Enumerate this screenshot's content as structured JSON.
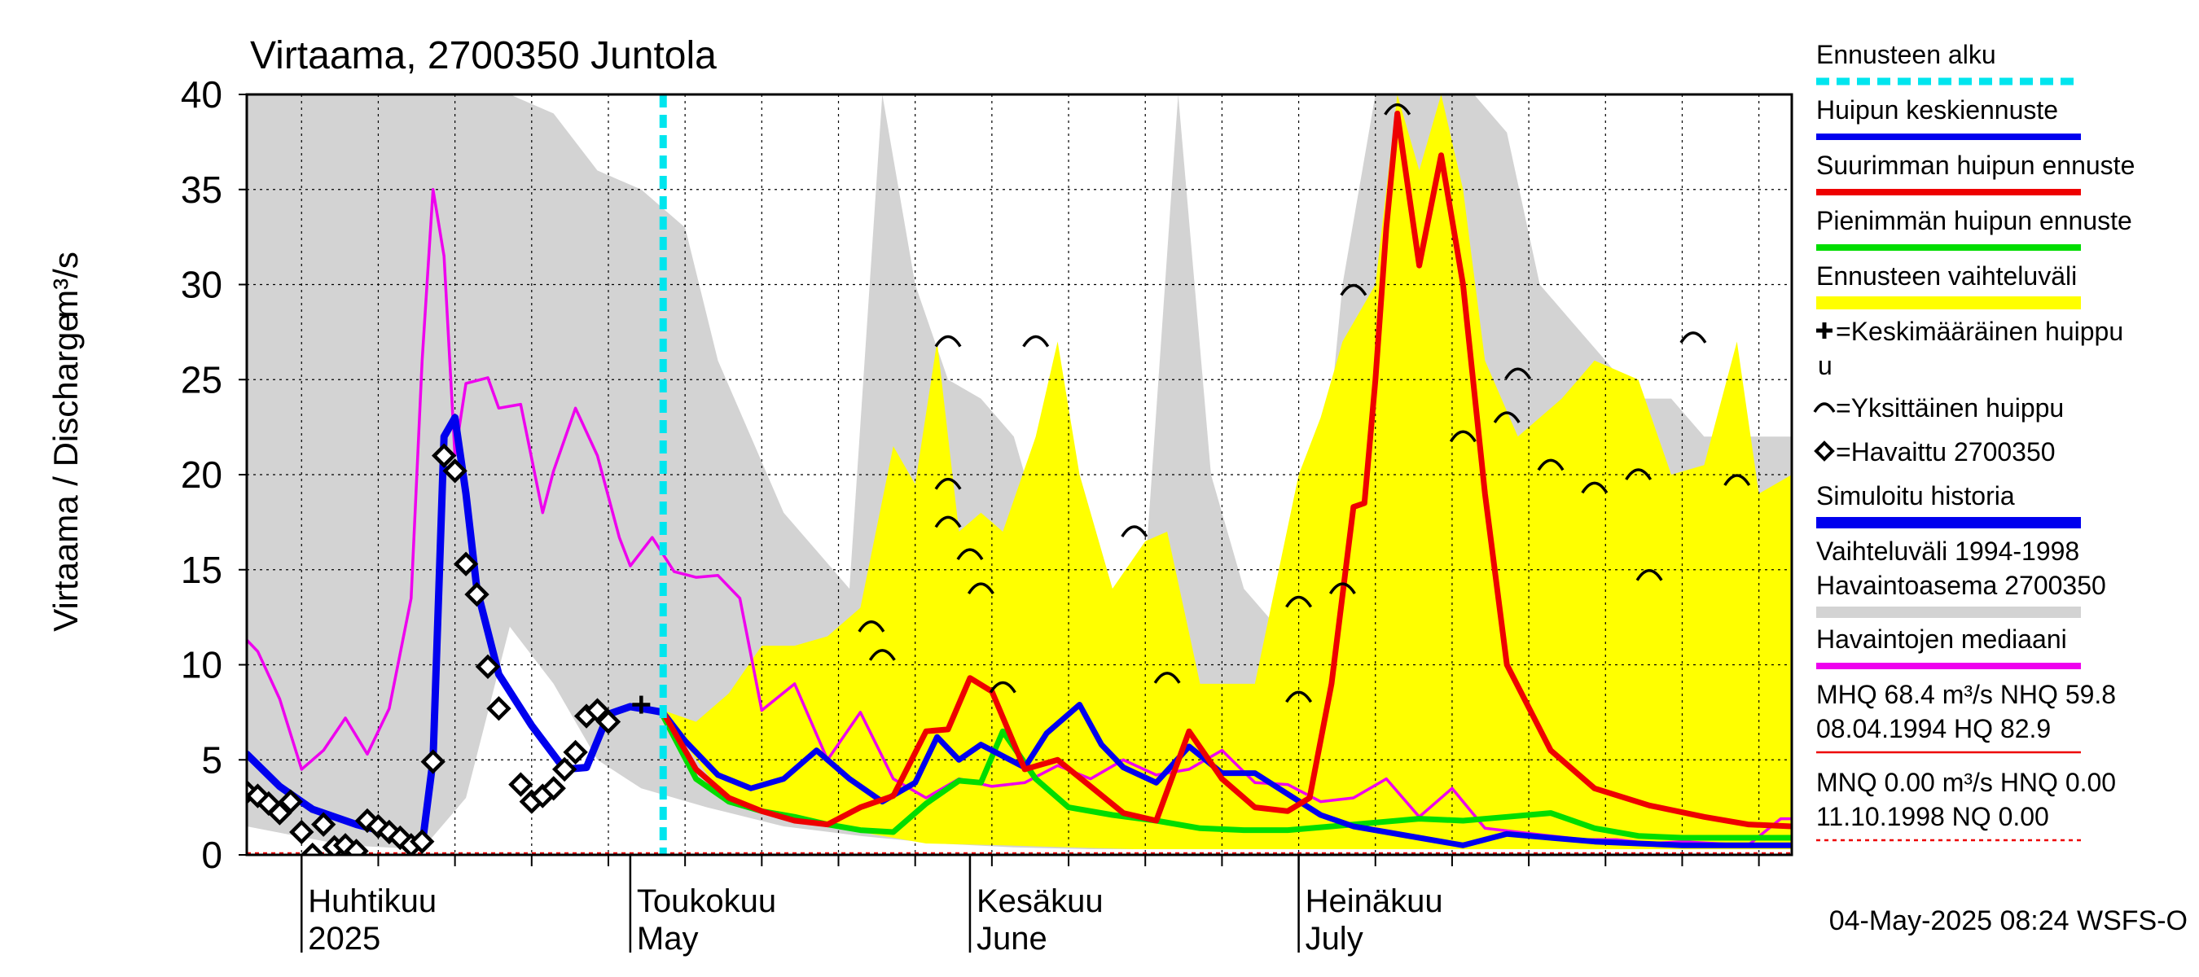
{
  "title": "Virtaama, 2700350 Juntola",
  "footer": "04-May-2025 08:24 WSFS-O",
  "chart_data": {
    "type": "line",
    "title": "Virtaama, 2700350 Juntola",
    "ylabel": "Virtaama / Discharge",
    "yunit": "m³/s",
    "ylim": [
      0,
      40
    ],
    "yticks": [
      "0",
      "5",
      "10",
      "15",
      "20",
      "25",
      "30",
      "35",
      "40"
    ],
    "xlim": [
      "2025-03-27",
      "2025-08-15"
    ],
    "forecast_start": "2025-05-04",
    "months": [
      {
        "date": "2025-04-01",
        "fi": "Huhtikuu",
        "en": "2025"
      },
      {
        "date": "2025-05-01",
        "fi": "Toukokuu",
        "en": "May"
      },
      {
        "date": "2025-06-01",
        "fi": "Kesäkuu",
        "en": "June"
      },
      {
        "date": "2025-07-01",
        "fi": "Heinäkuu",
        "en": "July"
      }
    ],
    "legend": [
      {
        "label": "Ennusteen alku",
        "color": "#00e5ee",
        "style": "dashed"
      },
      {
        "label": "Huipun keskiennuste",
        "color": "#0000ee",
        "style": "line"
      },
      {
        "label": "Suurimman huipun ennuste",
        "color": "#ee0000",
        "style": "line"
      },
      {
        "label": "Pienimmän huipun ennuste",
        "color": "#00dd00",
        "style": "line"
      },
      {
        "label": "Ennusteen vaihteluväli",
        "color": "#ffff00",
        "style": "band"
      },
      {
        "label": "=Keskimääräinen huippu",
        "label2": "u",
        "style": "plus"
      },
      {
        "label": "=Yksittäinen huippu",
        "style": "arc"
      },
      {
        "label": "=Havaittu 2700350",
        "style": "diamond"
      },
      {
        "label": "Simuloitu historia",
        "color": "#0000ee",
        "style": "thick"
      },
      {
        "label": "Vaihteluväli 1994-1998",
        "label2": " Havaintoasema 2700350",
        "color": "#d3d3d3",
        "style": "thick"
      },
      {
        "label": "Havaintojen mediaani",
        "color": "#ee00ee",
        "style": "line"
      },
      {
        "label": "MHQ 68.4 m³/s NHQ 59.8",
        "label2": "08.04.1994 HQ 82.9",
        "color": "#ee0000",
        "style": "thin"
      },
      {
        "label": "MNQ 0.00 m³/s HNQ 0.00",
        "label2": "11.10.1998 NQ 0.00",
        "color": "#ee0000",
        "style": "dotted"
      }
    ],
    "series": [
      {
        "name": "Havaittu 2700350",
        "x": [
          "2025-03-27",
          "2025-03-28",
          "2025-03-29",
          "2025-03-30",
          "2025-03-31",
          "2025-04-01",
          "2025-04-02",
          "2025-04-03",
          "2025-04-04",
          "2025-04-05",
          "2025-04-06",
          "2025-04-07",
          "2025-04-08",
          "2025-04-09",
          "2025-04-10",
          "2025-04-11",
          "2025-04-12",
          "2025-04-13",
          "2025-04-14",
          "2025-04-15",
          "2025-04-16",
          "2025-04-17",
          "2025-04-18",
          "2025-04-19",
          "2025-04-20",
          "2025-04-21",
          "2025-04-22",
          "2025-04-23",
          "2025-04-24",
          "2025-04-25",
          "2025-04-26",
          "2025-04-27",
          "2025-04-28",
          "2025-04-29",
          "2025-04-30",
          "2025-05-01",
          "2025-05-02",
          "2025-05-03"
        ],
        "y": [
          3.3,
          3.1,
          2.7,
          2.2,
          2.8,
          1.2,
          0.0,
          1.6,
          0.4,
          0.5,
          0.2,
          1.8,
          1.5,
          1.2,
          0.9,
          0.5,
          0.7,
          4.9,
          21.0,
          20.2,
          15.3,
          13.7,
          9.9,
          7.7,
          null,
          3.7,
          2.8,
          3.1,
          3.5,
          4.5,
          5.4,
          7.3,
          7.6,
          7.0,
          null,
          null,
          null,
          null
        ]
      },
      {
        "name": "Simuloitu historia",
        "x": [
          "2025-03-27",
          "2025-03-30",
          "2025-04-02",
          "2025-04-06",
          "2025-04-10",
          "2025-04-12",
          "2025-04-13",
          "2025-04-14",
          "2025-04-15",
          "2025-04-16",
          "2025-04-17",
          "2025-04-19",
          "2025-04-22",
          "2025-04-25",
          "2025-04-27",
          "2025-04-29",
          "2025-05-01",
          "2025-05-03",
          "2025-05-04"
        ],
        "y": [
          5.3,
          3.6,
          2.4,
          1.6,
          1.0,
          0.5,
          5.0,
          22.0,
          23.0,
          19.0,
          14.0,
          9.5,
          6.8,
          4.5,
          4.6,
          7.4,
          7.8,
          7.6,
          7.5
        ]
      },
      {
        "name": "Havaintojen mediaani",
        "x": [
          "2025-03-27",
          "2025-03-28",
          "2025-03-30",
          "2025-04-01",
          "2025-04-03",
          "2025-04-05",
          "2025-04-07",
          "2025-04-09",
          "2025-04-11",
          "2025-04-12",
          "2025-04-13",
          "2025-04-14",
          "2025-04-15",
          "2025-04-16",
          "2025-04-18",
          "2025-04-19",
          "2025-04-21",
          "2025-04-23",
          "2025-04-24",
          "2025-04-26",
          "2025-04-28",
          "2025-04-30",
          "2025-05-01",
          "2025-05-03",
          "2025-05-05",
          "2025-05-07",
          "2025-05-09",
          "2025-05-11",
          "2025-05-13",
          "2025-05-16",
          "2025-05-19",
          "2025-05-22",
          "2025-05-25",
          "2025-05-28",
          "2025-05-31",
          "2025-06-03",
          "2025-06-06",
          "2025-06-09",
          "2025-06-12",
          "2025-06-15",
          "2025-06-18",
          "2025-06-21",
          "2025-06-24",
          "2025-06-27",
          "2025-06-30",
          "2025-07-03",
          "2025-07-06",
          "2025-07-09",
          "2025-07-12",
          "2025-07-15",
          "2025-07-18",
          "2025-07-21",
          "2025-07-24",
          "2025-07-27",
          "2025-07-30",
          "2025-08-02",
          "2025-08-05",
          "2025-08-08",
          "2025-08-11",
          "2025-08-14",
          "2025-08-15"
        ],
        "y": [
          11.3,
          10.7,
          8.2,
          4.5,
          5.5,
          7.2,
          5.3,
          7.7,
          13.5,
          26.0,
          35.0,
          31.5,
          21.0,
          24.8,
          25.1,
          23.5,
          23.7,
          18.0,
          20.2,
          23.5,
          21.0,
          16.7,
          15.2,
          16.7,
          14.9,
          14.6,
          14.7,
          13.5,
          7.6,
          9.0,
          5.0,
          7.5,
          4.0,
          3.0,
          4.0,
          3.6,
          3.8,
          4.7,
          4.0,
          5.0,
          4.2,
          4.5,
          5.5,
          3.8,
          3.7,
          2.8,
          3.0,
          4.0,
          2.0,
          3.5,
          1.4,
          1.2,
          1.0,
          0.8,
          0.8,
          0.6,
          0.7,
          0.6,
          0.5,
          1.9,
          1.9
        ]
      },
      {
        "name": "Huipun keskiennuste",
        "x": [
          "2025-05-04",
          "2025-05-06",
          "2025-05-09",
          "2025-05-12",
          "2025-05-15",
          "2025-05-18",
          "2025-05-21",
          "2025-05-24",
          "2025-05-27",
          "2025-05-29",
          "2025-05-31",
          "2025-06-02",
          "2025-06-04",
          "2025-06-06",
          "2025-06-08",
          "2025-06-11",
          "2025-06-13",
          "2025-06-15",
          "2025-06-18",
          "2025-06-21",
          "2025-06-24",
          "2025-06-27",
          "2025-06-30",
          "2025-07-03",
          "2025-07-06",
          "2025-07-09",
          "2025-07-12",
          "2025-07-16",
          "2025-07-20",
          "2025-07-24",
          "2025-07-28",
          "2025-08-01",
          "2025-08-05",
          "2025-08-10",
          "2025-08-15"
        ],
        "y": [
          7.5,
          6.0,
          4.2,
          3.5,
          4.0,
          5.5,
          4.0,
          2.8,
          3.8,
          6.2,
          5.0,
          5.8,
          5.2,
          4.6,
          6.4,
          7.9,
          5.8,
          4.6,
          3.8,
          5.7,
          4.3,
          4.3,
          3.2,
          2.1,
          1.5,
          1.2,
          0.9,
          0.5,
          1.1,
          0.9,
          0.7,
          0.6,
          0.5,
          0.5,
          0.5
        ]
      },
      {
        "name": "Suurimman huipun ennuste",
        "x": [
          "2025-05-04",
          "2025-05-07",
          "2025-05-10",
          "2025-05-13",
          "2025-05-16",
          "2025-05-19",
          "2025-05-22",
          "2025-05-25",
          "2025-05-28",
          "2025-05-30",
          "2025-06-01",
          "2025-06-03",
          "2025-06-06",
          "2025-06-09",
          "2025-06-12",
          "2025-06-15",
          "2025-06-18",
          "2025-06-21",
          "2025-06-24",
          "2025-06-27",
          "2025-06-30",
          "2025-07-02",
          "2025-07-04",
          "2025-07-06",
          "2025-07-07",
          "2025-07-08",
          "2025-07-09",
          "2025-07-10",
          "2025-07-12",
          "2025-07-14",
          "2025-07-16",
          "2025-07-18",
          "2025-07-20",
          "2025-07-24",
          "2025-07-28",
          "2025-08-02",
          "2025-08-07",
          "2025-08-11",
          "2025-08-15"
        ],
        "y": [
          7.5,
          4.5,
          3.0,
          2.3,
          1.8,
          1.6,
          2.5,
          3.1,
          6.5,
          6.6,
          9.3,
          8.6,
          4.5,
          5.0,
          3.6,
          2.2,
          1.8,
          6.5,
          4.0,
          2.5,
          2.3,
          3.0,
          9.0,
          18.3,
          18.5,
          25.0,
          33.0,
          39.0,
          31.0,
          36.8,
          30.0,
          19.0,
          10.0,
          5.5,
          3.5,
          2.6,
          2.0,
          1.6,
          1.5
        ]
      },
      {
        "name": "Pienimmän huipun ennuste",
        "x": [
          "2025-05-04",
          "2025-05-07",
          "2025-05-10",
          "2025-05-13",
          "2025-05-16",
          "2025-05-19",
          "2025-05-22",
          "2025-05-25",
          "2025-05-28",
          "2025-05-31",
          "2025-06-02",
          "2025-06-04",
          "2025-06-07",
          "2025-06-10",
          "2025-06-14",
          "2025-06-18",
          "2025-06-22",
          "2025-06-26",
          "2025-06-30",
          "2025-07-04",
          "2025-07-08",
          "2025-07-12",
          "2025-07-16",
          "2025-07-20",
          "2025-07-24",
          "2025-07-28",
          "2025-08-01",
          "2025-08-05",
          "2025-08-10",
          "2025-08-15"
        ],
        "y": [
          7.3,
          4.0,
          2.8,
          2.3,
          2.0,
          1.6,
          1.3,
          1.2,
          2.7,
          3.9,
          3.8,
          6.5,
          4.0,
          2.5,
          2.1,
          1.8,
          1.4,
          1.3,
          1.3,
          1.5,
          1.7,
          1.9,
          1.8,
          2.0,
          2.2,
          1.4,
          1.0,
          0.9,
          0.9,
          0.9
        ]
      },
      {
        "name": "Ennusteen vaihteluväli (ylä)",
        "x": [
          "2025-05-04",
          "2025-05-07",
          "2025-05-10",
          "2025-05-13",
          "2025-05-16",
          "2025-05-19",
          "2025-05-22",
          "2025-05-25",
          "2025-05-27",
          "2025-05-29",
          "2025-05-31",
          "2025-06-02",
          "2025-06-04",
          "2025-06-07",
          "2025-06-09",
          "2025-06-11",
          "2025-06-14",
          "2025-06-17",
          "2025-06-19",
          "2025-06-22",
          "2025-06-24",
          "2025-06-27",
          "2025-07-01",
          "2025-07-03",
          "2025-07-05",
          "2025-07-08",
          "2025-07-10",
          "2025-07-12",
          "2025-07-14",
          "2025-07-16",
          "2025-07-18",
          "2025-07-21",
          "2025-07-25",
          "2025-07-28",
          "2025-08-01",
          "2025-08-04",
          "2025-08-07",
          "2025-08-10",
          "2025-08-12",
          "2025-08-15"
        ],
        "y": [
          7.6,
          7.0,
          8.5,
          11.0,
          11.0,
          11.5,
          13.0,
          21.5,
          19.5,
          27.0,
          17.0,
          18.0,
          17.0,
          22.0,
          27.0,
          20.0,
          14.0,
          16.5,
          17.0,
          9.0,
          9.0,
          9.0,
          20.0,
          23.0,
          27.0,
          30.0,
          40.0,
          36.0,
          40.0,
          35.0,
          26.0,
          22.0,
          24.0,
          26.0,
          25.0,
          20.0,
          20.5,
          27.0,
          19.0,
          20.0
        ]
      },
      {
        "name": "Ennusteen vaihteluväli (ala)",
        "x": [
          "2025-05-04",
          "2025-05-10",
          "2025-05-16",
          "2025-05-22",
          "2025-05-28",
          "2025-06-04",
          "2025-06-10",
          "2025-06-16",
          "2025-06-22",
          "2025-06-28",
          "2025-07-04",
          "2025-07-10",
          "2025-07-16",
          "2025-07-22",
          "2025-07-28",
          "2025-08-03",
          "2025-08-09",
          "2025-08-15"
        ],
        "y": [
          7.4,
          2.7,
          1.9,
          1.2,
          0.6,
          0.5,
          0.4,
          0.3,
          0.3,
          0.3,
          0.3,
          0.3,
          0.3,
          0.3,
          0.3,
          0.3,
          0.3,
          0.3
        ]
      },
      {
        "name": "Vaihteluväli 1994-1998 (ylä)",
        "x": [
          "2025-03-27",
          "2025-04-05",
          "2025-04-12",
          "2025-04-16",
          "2025-04-20",
          "2025-04-24",
          "2025-04-28",
          "2025-05-02",
          "2025-05-06",
          "2025-05-09",
          "2025-05-12",
          "2025-05-15",
          "2025-05-18",
          "2025-05-21",
          "2025-05-24",
          "2025-05-27",
          "2025-05-30",
          "2025-06-02",
          "2025-06-05",
          "2025-06-08",
          "2025-06-11",
          "2025-06-14",
          "2025-06-17",
          "2025-06-20",
          "2025-06-23",
          "2025-06-26",
          "2025-06-29",
          "2025-07-02",
          "2025-07-05",
          "2025-07-08",
          "2025-07-11",
          "2025-07-14",
          "2025-07-17",
          "2025-07-20",
          "2025-07-23",
          "2025-07-26",
          "2025-07-29",
          "2025-08-01",
          "2025-08-04",
          "2025-08-07",
          "2025-08-10",
          "2025-08-15"
        ],
        "y": [
          40.0,
          40.0,
          40.0,
          40.0,
          40.0,
          39.0,
          36.0,
          35.0,
          33.0,
          26.0,
          22.0,
          18.0,
          16.0,
          14.0,
          40.0,
          30.0,
          25.0,
          24.0,
          22.0,
          16.0,
          20.0,
          14.0,
          15.0,
          40.0,
          20.0,
          14.0,
          12.0,
          12.0,
          30.0,
          40.0,
          40.0,
          40.0,
          40.0,
          38.0,
          30.0,
          28.0,
          26.0,
          24.0,
          24.0,
          22.0,
          22.0,
          22.0
        ]
      },
      {
        "name": "Vaihteluväli 1994-1998 (ala)",
        "x": [
          "2025-03-27",
          "2025-04-05",
          "2025-04-12",
          "2025-04-16",
          "2025-04-20",
          "2025-04-24",
          "2025-04-28",
          "2025-05-02",
          "2025-05-08",
          "2025-05-15",
          "2025-05-22",
          "2025-05-29",
          "2025-06-05",
          "2025-06-12",
          "2025-06-19",
          "2025-06-26",
          "2025-07-03",
          "2025-07-10",
          "2025-07-17",
          "2025-07-24",
          "2025-07-31",
          "2025-08-07",
          "2025-08-15"
        ],
        "y": [
          1.5,
          0.5,
          0.3,
          3.0,
          12.0,
          9.0,
          5.0,
          3.5,
          2.5,
          1.5,
          1.0,
          0.6,
          0.4,
          0.3,
          0.3,
          0.3,
          0.3,
          0.3,
          0.3,
          0.3,
          0.3,
          0.3,
          0.3
        ]
      }
    ],
    "single_peaks": [
      {
        "date": "2025-05-23",
        "value": 12.0
      },
      {
        "date": "2025-05-24",
        "value": 10.5
      },
      {
        "date": "2025-05-30",
        "value": 27.0
      },
      {
        "date": "2025-05-30",
        "value": 19.5
      },
      {
        "date": "2025-05-30",
        "value": 17.5
      },
      {
        "date": "2025-06-01",
        "value": 15.8
      },
      {
        "date": "2025-06-02",
        "value": 14.0
      },
      {
        "date": "2025-06-04",
        "value": 8.8
      },
      {
        "date": "2025-06-07",
        "value": 27.0
      },
      {
        "date": "2025-06-16",
        "value": 17.0
      },
      {
        "date": "2025-06-19",
        "value": 9.3
      },
      {
        "date": "2025-07-01",
        "value": 13.3
      },
      {
        "date": "2025-07-01",
        "value": 8.3
      },
      {
        "date": "2025-07-05",
        "value": 14.0
      },
      {
        "date": "2025-07-06",
        "value": 29.7
      },
      {
        "date": "2025-07-10",
        "value": 39.2
      },
      {
        "date": "2025-07-16",
        "value": 22.0
      },
      {
        "date": "2025-07-20",
        "value": 23.0
      },
      {
        "date": "2025-07-21",
        "value": 25.3
      },
      {
        "date": "2025-07-24",
        "value": 20.5
      },
      {
        "date": "2025-07-28",
        "value": 19.3
      },
      {
        "date": "2025-08-01",
        "value": 20.0
      },
      {
        "date": "2025-08-02",
        "value": 14.7
      },
      {
        "date": "2025-08-06",
        "value": 27.2
      },
      {
        "date": "2025-08-10",
        "value": 19.7
      }
    ],
    "mean_peak": {
      "date": "2025-05-02",
      "value": 7.9
    },
    "reference_lines": [
      {
        "label": "MNQ",
        "value": 0.0,
        "color": "#ee0000",
        "style": "dotted"
      }
    ]
  }
}
